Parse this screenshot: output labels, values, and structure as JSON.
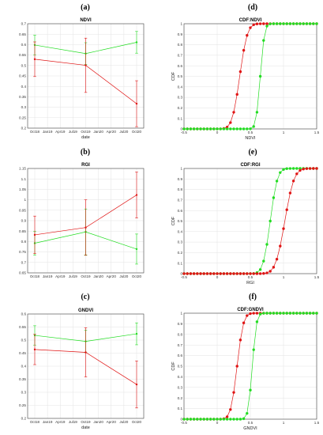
{
  "colors": {
    "red": "#e01414",
    "green": "#22dd22",
    "grid": "#e3e3e3",
    "axis": "#444444"
  },
  "chart_data": [
    {
      "letter": "(a)",
      "type": "line",
      "title": "NDVI",
      "xlabel": "date",
      "ylabel": "",
      "x_ticks": [
        "Oct18",
        "Jan19",
        "Apr19",
        "Jul19",
        "Oct19",
        "Jan20",
        "Apr20",
        "Jul20",
        "Oct20"
      ],
      "y_ticks": [
        "0.2",
        "0.25",
        "0.3",
        "0.35",
        "0.4",
        "0.45",
        "0.5",
        "0.55",
        "0.6",
        "0.65",
        "0.7"
      ],
      "ylim": [
        0.2,
        0.7
      ],
      "grid": true,
      "x": [
        "Oct18",
        "Oct19",
        "Oct20"
      ],
      "series": [
        {
          "color": "green",
          "values": [
            0.598,
            0.557,
            0.611
          ],
          "err": [
            0.047,
            0.052,
            0.052
          ]
        },
        {
          "color": "red",
          "values": [
            0.53,
            0.501,
            0.317
          ],
          "err": [
            0.083,
            0.13,
            0.11
          ]
        }
      ]
    },
    {
      "letter": "(d)",
      "type": "scatter",
      "title": "CDF:NDVI",
      "xlabel": "NDVI",
      "ylabel": "CDF",
      "x_ticks": [
        "-0.5",
        "0",
        "0.5",
        "1",
        "1.5"
      ],
      "y_ticks": [
        "0",
        "0.1",
        "0.2",
        "0.3",
        "0.4",
        "0.5",
        "0.6",
        "0.7",
        "0.8",
        "0.9",
        "1"
      ],
      "xlim": [
        -0.5,
        1.5
      ],
      "ylim": [
        0,
        1
      ],
      "grid": true,
      "series": [
        {
          "color": "red",
          "mu": 0.34,
          "sigma": 0.09
        },
        {
          "color": "green",
          "mu": 0.65,
          "sigma": 0.05
        }
      ]
    },
    {
      "letter": "(b)",
      "type": "line",
      "title": "RGI",
      "xlabel": "",
      "ylabel": "",
      "x_ticks": [
        "Oct18",
        "Jan19",
        "Apr19",
        "Jul19",
        "Oct19",
        "Jan20",
        "Apr20",
        "Jul20",
        "Oct20"
      ],
      "y_ticks": [
        "0.65",
        "0.7",
        "0.75",
        "0.8",
        "0.85",
        "0.9",
        "0.95",
        "1",
        "1.05",
        "1.1",
        "1.15"
      ],
      "ylim": [
        0.65,
        1.15
      ],
      "grid": true,
      "x": [
        "Oct18",
        "Oct19",
        "Oct20"
      ],
      "series": [
        {
          "color": "green",
          "values": [
            0.792,
            0.846,
            0.764
          ],
          "err": [
            0.057,
            0.11,
            0.072
          ]
        },
        {
          "color": "red",
          "values": [
            0.832,
            0.867,
            1.023
          ],
          "err": [
            0.09,
            0.133,
            0.11
          ]
        }
      ]
    },
    {
      "letter": "(e)",
      "type": "scatter",
      "title": "CDF:RGI",
      "xlabel": "RGI",
      "ylabel": "CDF",
      "x_ticks": [
        "-0.5",
        "0",
        "0.5",
        "1",
        "1.5"
      ],
      "y_ticks": [
        "0",
        "0.1",
        "0.2",
        "0.3",
        "0.4",
        "0.5",
        "0.6",
        "0.7",
        "0.8",
        "0.9",
        "1"
      ],
      "xlim": [
        -0.5,
        1.5
      ],
      "ylim": [
        0,
        1
      ],
      "grid": true,
      "series": [
        {
          "color": "green",
          "mu": 0.8,
          "sigma": 0.085
        },
        {
          "color": "red",
          "mu": 1.02,
          "sigma": 0.11
        }
      ]
    },
    {
      "letter": "(c)",
      "type": "line",
      "title": "GNDVI",
      "xlabel": "date",
      "ylabel": "",
      "x_ticks": [
        "Oct18",
        "Jan19",
        "Apr19",
        "Jul19",
        "Oct19",
        "Jan20",
        "Apr20",
        "Jul20",
        "Oct20"
      ],
      "y_ticks": [
        "0.2",
        "0.25",
        "0.3",
        "0.35",
        "0.4",
        "0.45",
        "0.5",
        "0.55",
        "0.6"
      ],
      "ylim": [
        0.2,
        0.6
      ],
      "grid": true,
      "x": [
        "Oct18",
        "Oct19",
        "Oct20"
      ],
      "series": [
        {
          "color": "green",
          "values": [
            0.518,
            0.495,
            0.524
          ],
          "err": [
            0.037,
            0.043,
            0.042
          ]
        },
        {
          "color": "red",
          "values": [
            0.464,
            0.453,
            0.33
          ],
          "err": [
            0.058,
            0.094,
            0.09
          ]
        }
      ]
    },
    {
      "letter": "(f)",
      "type": "scatter",
      "title": "CDF:GNDVI",
      "xlabel": "GNDVI",
      "ylabel": "CDF",
      "x_ticks": [
        "-0.5",
        "0",
        "0.5",
        "1",
        "1.5"
      ],
      "y_ticks": [
        "0",
        "0.1",
        "0.2",
        "0.3",
        "0.4",
        "0.5",
        "0.6",
        "0.7",
        "0.8",
        "0.9",
        "1"
      ],
      "xlim": [
        -0.5,
        1.5
      ],
      "ylim": [
        0,
        1
      ],
      "grid": true,
      "series": [
        {
          "color": "red",
          "mu": 0.3,
          "sigma": 0.075
        },
        {
          "color": "green",
          "mu": 0.53,
          "sigma": 0.05
        }
      ]
    }
  ]
}
